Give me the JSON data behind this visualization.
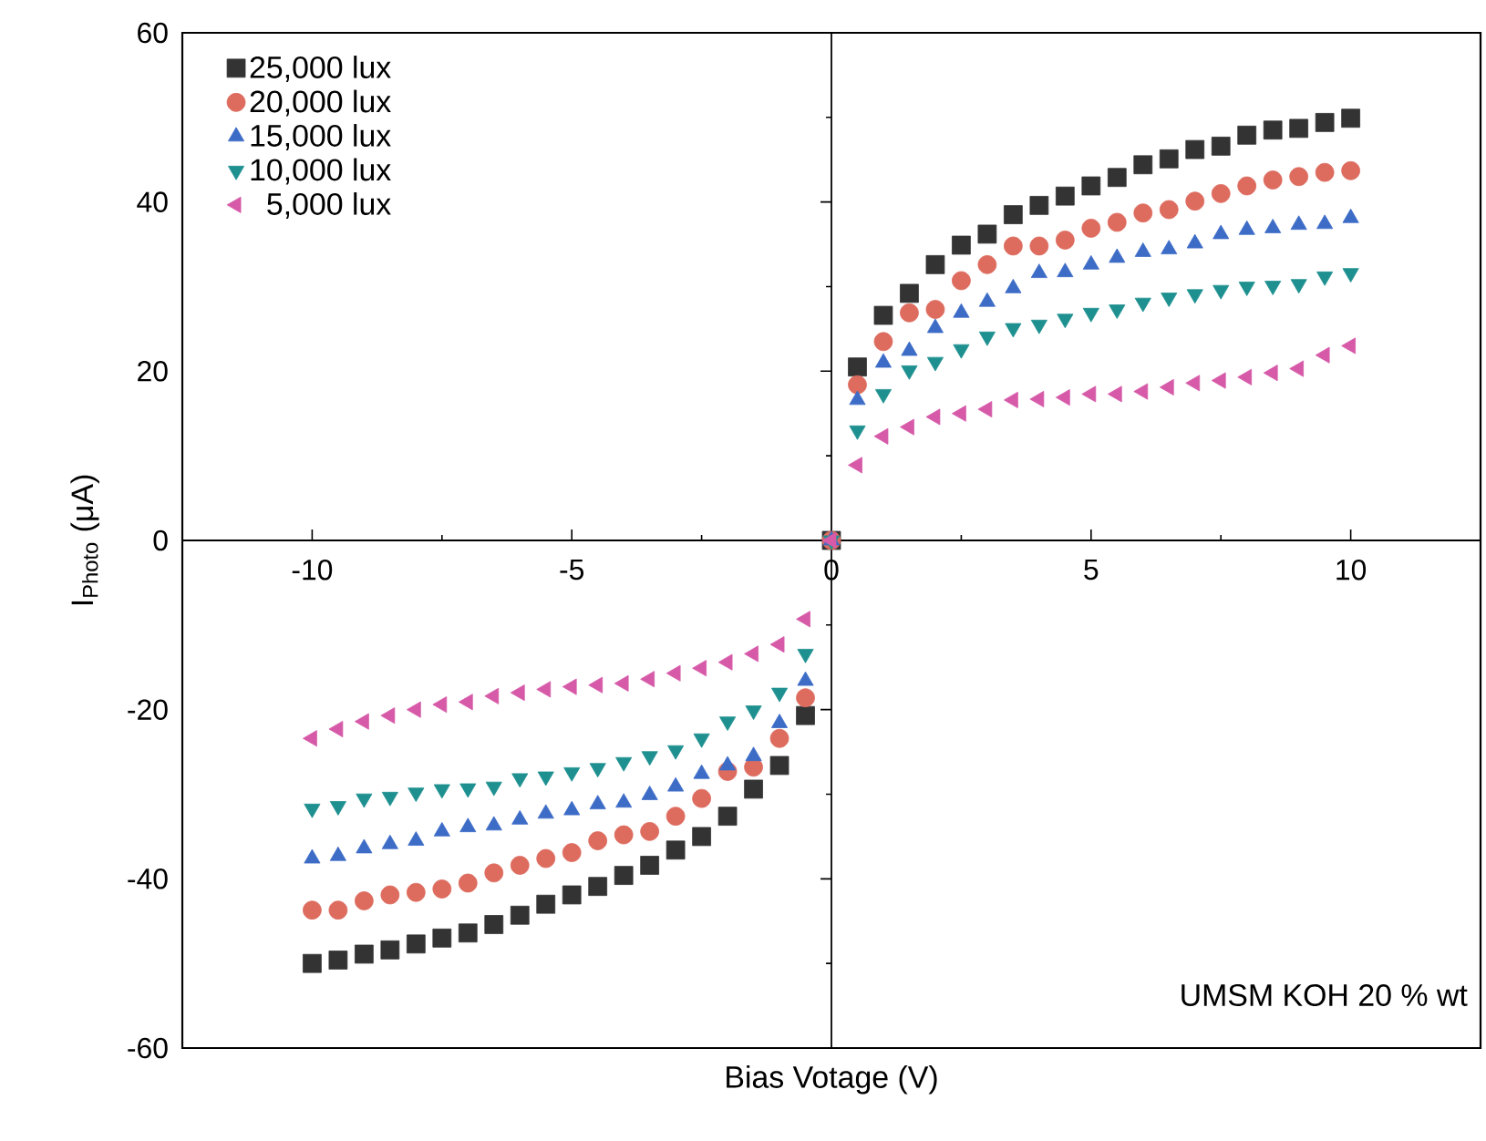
{
  "chart_data": {
    "type": "scatter",
    "xlabel": "Bias Votage (V)",
    "ylabel": "I$_{Photo}$ (μA)",
    "annotations": [
      "UMSM KOH 20 % wt"
    ],
    "x": [
      -10,
      -9.5,
      -9,
      -8.5,
      -8,
      -7.5,
      -7,
      -6.5,
      -6,
      -5.5,
      -5,
      -4.5,
      -4,
      -3.5,
      -3,
      -2.5,
      -2,
      -1.5,
      -1,
      -0.5,
      0,
      0.5,
      1,
      1.5,
      2,
      2.5,
      3,
      3.5,
      4,
      4.5,
      5,
      5.5,
      6,
      6.5,
      7,
      7.5,
      8,
      8.5,
      9,
      9.5,
      10
    ],
    "series": [
      {
        "name": "25,000 lux",
        "color": "#333333",
        "marker": "square",
        "values": [
          -50,
          -49.6,
          -48.9,
          -48.4,
          -47.7,
          -47,
          -46.4,
          -45.4,
          -44.3,
          -43,
          -41.9,
          -40.9,
          -39.6,
          -38.4,
          -36.6,
          -35,
          -32.6,
          -29.4,
          -26.6,
          -20.7,
          0,
          20.5,
          26.6,
          29.2,
          32.6,
          34.9,
          36.2,
          38.5,
          39.6,
          40.7,
          41.9,
          42.9,
          44.4,
          45.1,
          46.2,
          46.6,
          47.9,
          48.5,
          48.7,
          49.4,
          49.9
        ]
      },
      {
        "name": "20,000 lux",
        "color": "#dd6b5e",
        "marker": "circle",
        "values": [
          -43.7,
          -43.7,
          -42.6,
          -41.9,
          -41.6,
          -41.2,
          -40.5,
          -39.3,
          -38.4,
          -37.6,
          -36.9,
          -35.5,
          -34.8,
          -34.4,
          -32.6,
          -30.5,
          -27.3,
          -26.8,
          -23.4,
          -18.6,
          0,
          18.4,
          23.5,
          26.9,
          27.3,
          30.7,
          32.6,
          34.8,
          34.8,
          35.5,
          36.9,
          37.6,
          38.7,
          39.1,
          40.1,
          41,
          41.9,
          42.6,
          43,
          43.5,
          43.7
        ]
      },
      {
        "name": "15,000 lux",
        "color": "#3d6cc7",
        "marker": "triangle",
        "values": [
          -37.6,
          -37.3,
          -36.4,
          -35.9,
          -35.5,
          -34.4,
          -33.9,
          -33.7,
          -33,
          -32.3,
          -31.9,
          -31.2,
          -31,
          -30.1,
          -29.1,
          -27.6,
          -26.6,
          -25.5,
          -21.6,
          -16.6,
          0,
          16.6,
          21,
          22.4,
          25.1,
          26.9,
          28.2,
          29.8,
          31.6,
          31.7,
          32.6,
          33.4,
          34.1,
          34.4,
          35.1,
          36.2,
          36.7,
          36.9,
          37.3,
          37.4,
          38.1
        ]
      },
      {
        "name": "10,000 lux",
        "color": "#1f9090",
        "marker": "triangle-down",
        "values": [
          -31.7,
          -31.4,
          -30.5,
          -30.3,
          -29.8,
          -29.4,
          -29.3,
          -29.1,
          -28.1,
          -27.9,
          -27.4,
          -26.9,
          -26.2,
          -25.5,
          -24.8,
          -23.4,
          -21.4,
          -20.1,
          -18,
          -13.4,
          0,
          13,
          17.3,
          20.1,
          21.1,
          22.6,
          24.1,
          25.1,
          25.5,
          26.2,
          26.9,
          27.3,
          28.1,
          28.7,
          29.1,
          29.6,
          30,
          30.1,
          30.3,
          31.2,
          31.6
        ]
      },
      {
        "name": "5,000 lux",
        "color": "#d65aa8",
        "marker": "triangle-left",
        "values": [
          -23.4,
          -22.3,
          -21.4,
          -20.7,
          -20,
          -19.4,
          -19.1,
          -18.4,
          -18,
          -17.6,
          -17.3,
          -17.1,
          -16.9,
          -16.4,
          -15.7,
          -15.1,
          -14.4,
          -13.4,
          -12.3,
          -9.3,
          0,
          8.9,
          12.3,
          13.4,
          14.6,
          15,
          15.5,
          16.6,
          16.7,
          16.9,
          17.3,
          17.3,
          17.6,
          18.1,
          18.6,
          18.9,
          19.3,
          19.8,
          20.3,
          21.9,
          23
        ]
      }
    ],
    "xlim": [
      -12.5,
      12.5
    ],
    "ylim": [
      -60,
      60
    ],
    "xticks": [
      -10,
      -5,
      0,
      5,
      10
    ],
    "yticks": [
      -60,
      -40,
      -20,
      0,
      20,
      40,
      60
    ],
    "legend": "top left"
  }
}
